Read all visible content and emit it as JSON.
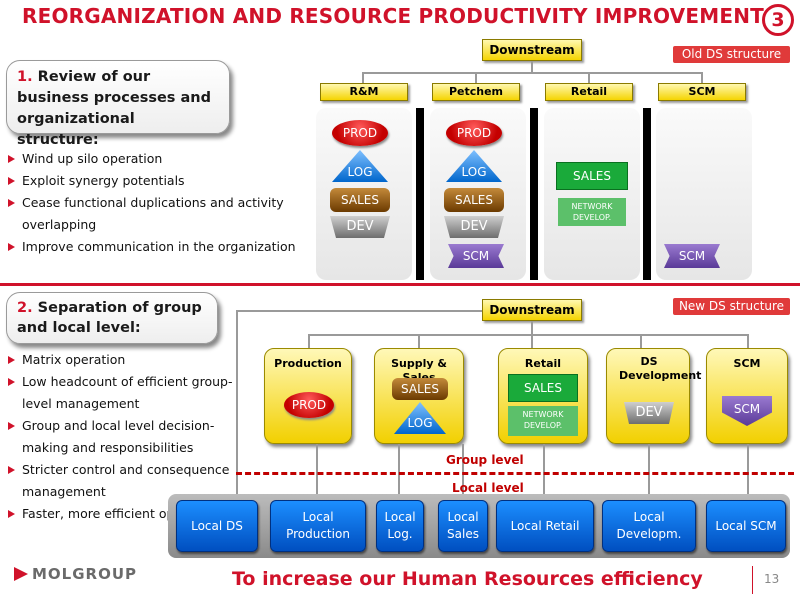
{
  "title": "REORGANIZATION AND RESOURCE PRODUCTIVITY IMPROVEMENT",
  "page_badge": "3",
  "review": {
    "number": "1.",
    "text": "Review of our business processes and organizational structure:",
    "bullets": [
      "Wind up silo operation",
      "Exploit synergy potentials",
      "Cease functional duplications and activity overlapping",
      "Improve communication in the organization"
    ]
  },
  "old_structure": {
    "label": "Old DS structure",
    "root": "Downstream",
    "columns": [
      "R&M",
      "Petchem",
      "Retail",
      "SCM"
    ],
    "items": {
      "prod": "PROD",
      "log": "LOG",
      "sales": "SALES",
      "dev": "DEV",
      "scm": "SCM",
      "network": "NETWORK DEVELOP."
    }
  },
  "separation": {
    "number": "2.",
    "text": "Separation of group and local level:",
    "bullets": [
      "Matrix operation",
      "Low headcount of efficient group-level management",
      "Group and local level decision-making and responsibilities",
      "Stricter control and consequence management",
      "Faster, more efficient operation"
    ]
  },
  "new_structure": {
    "label": "New DS structure",
    "root": "Downstream",
    "units": [
      "Production",
      "Supply & Sales",
      "Retail",
      "DS Development",
      "SCM"
    ],
    "group_level": "Group level",
    "local_level": "Local level",
    "local_units": [
      "Local DS",
      "Local Production",
      "Local Log.",
      "Local Sales",
      "Local Retail",
      "Local Developm.",
      "Local SCM"
    ]
  },
  "tagline": "To increase our Human Resources efficiency",
  "logo": "MOLGROUP",
  "page_number": "13",
  "colors": {
    "accent": "#d0122a",
    "header_yellow": "#f5d400",
    "local_blue": "#0a6ae0"
  }
}
